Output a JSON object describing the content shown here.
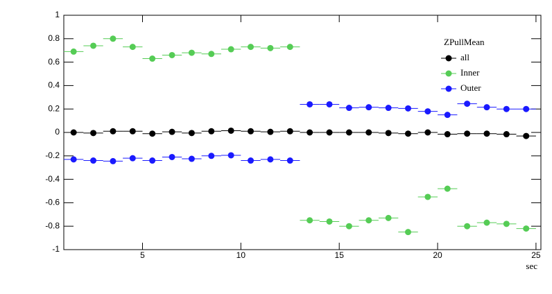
{
  "chart_data": {
    "type": "scatter",
    "legend_title": "ZPullMean",
    "x_label": "sec",
    "xlim": [
      1,
      25.25
    ],
    "xticks": [
      5,
      10,
      15,
      20,
      25
    ],
    "ylim": [
      -1,
      1
    ],
    "yticks": [
      -1,
      -0.8,
      -0.6,
      -0.4,
      -0.2,
      0,
      0.2,
      0.4,
      0.6,
      0.8,
      1
    ],
    "legend": "upper-right",
    "x": [
      1.5,
      2.5,
      3.5,
      4.5,
      5.5,
      6.5,
      7.5,
      8.5,
      9.5,
      10.5,
      11.5,
      12.5,
      13.5,
      14.5,
      15.5,
      16.5,
      17.5,
      18.5,
      19.5,
      20.5,
      21.5,
      22.5,
      23.5,
      24.5
    ],
    "series": [
      {
        "name": "all",
        "color": "#000000",
        "values": [
          0.0,
          -0.005,
          0.01,
          0.01,
          -0.01,
          0.005,
          -0.005,
          0.01,
          0.015,
          0.01,
          0.005,
          0.01,
          0.0,
          0.0,
          0.0,
          0.0,
          -0.005,
          -0.01,
          0.0,
          -0.015,
          -0.01,
          -0.01,
          -0.015,
          -0.03
        ]
      },
      {
        "name": "Inner",
        "color": "#55cc55",
        "values": [
          0.69,
          0.74,
          0.8,
          0.73,
          0.63,
          0.66,
          0.68,
          0.67,
          0.71,
          0.73,
          0.72,
          0.73,
          -0.75,
          -0.76,
          -0.8,
          -0.75,
          -0.73,
          -0.85,
          -0.55,
          -0.48,
          -0.8,
          -0.77,
          -0.78,
          -0.82
        ]
      },
      {
        "name": "Outer",
        "color": "#1a1aff",
        "values": [
          -0.23,
          -0.24,
          -0.245,
          -0.22,
          -0.24,
          -0.21,
          -0.225,
          -0.2,
          -0.195,
          -0.24,
          -0.23,
          -0.24,
          0.24,
          0.24,
          0.21,
          0.215,
          0.21,
          0.205,
          0.18,
          0.15,
          0.245,
          0.215,
          0.2,
          0.2
        ]
      }
    ]
  }
}
